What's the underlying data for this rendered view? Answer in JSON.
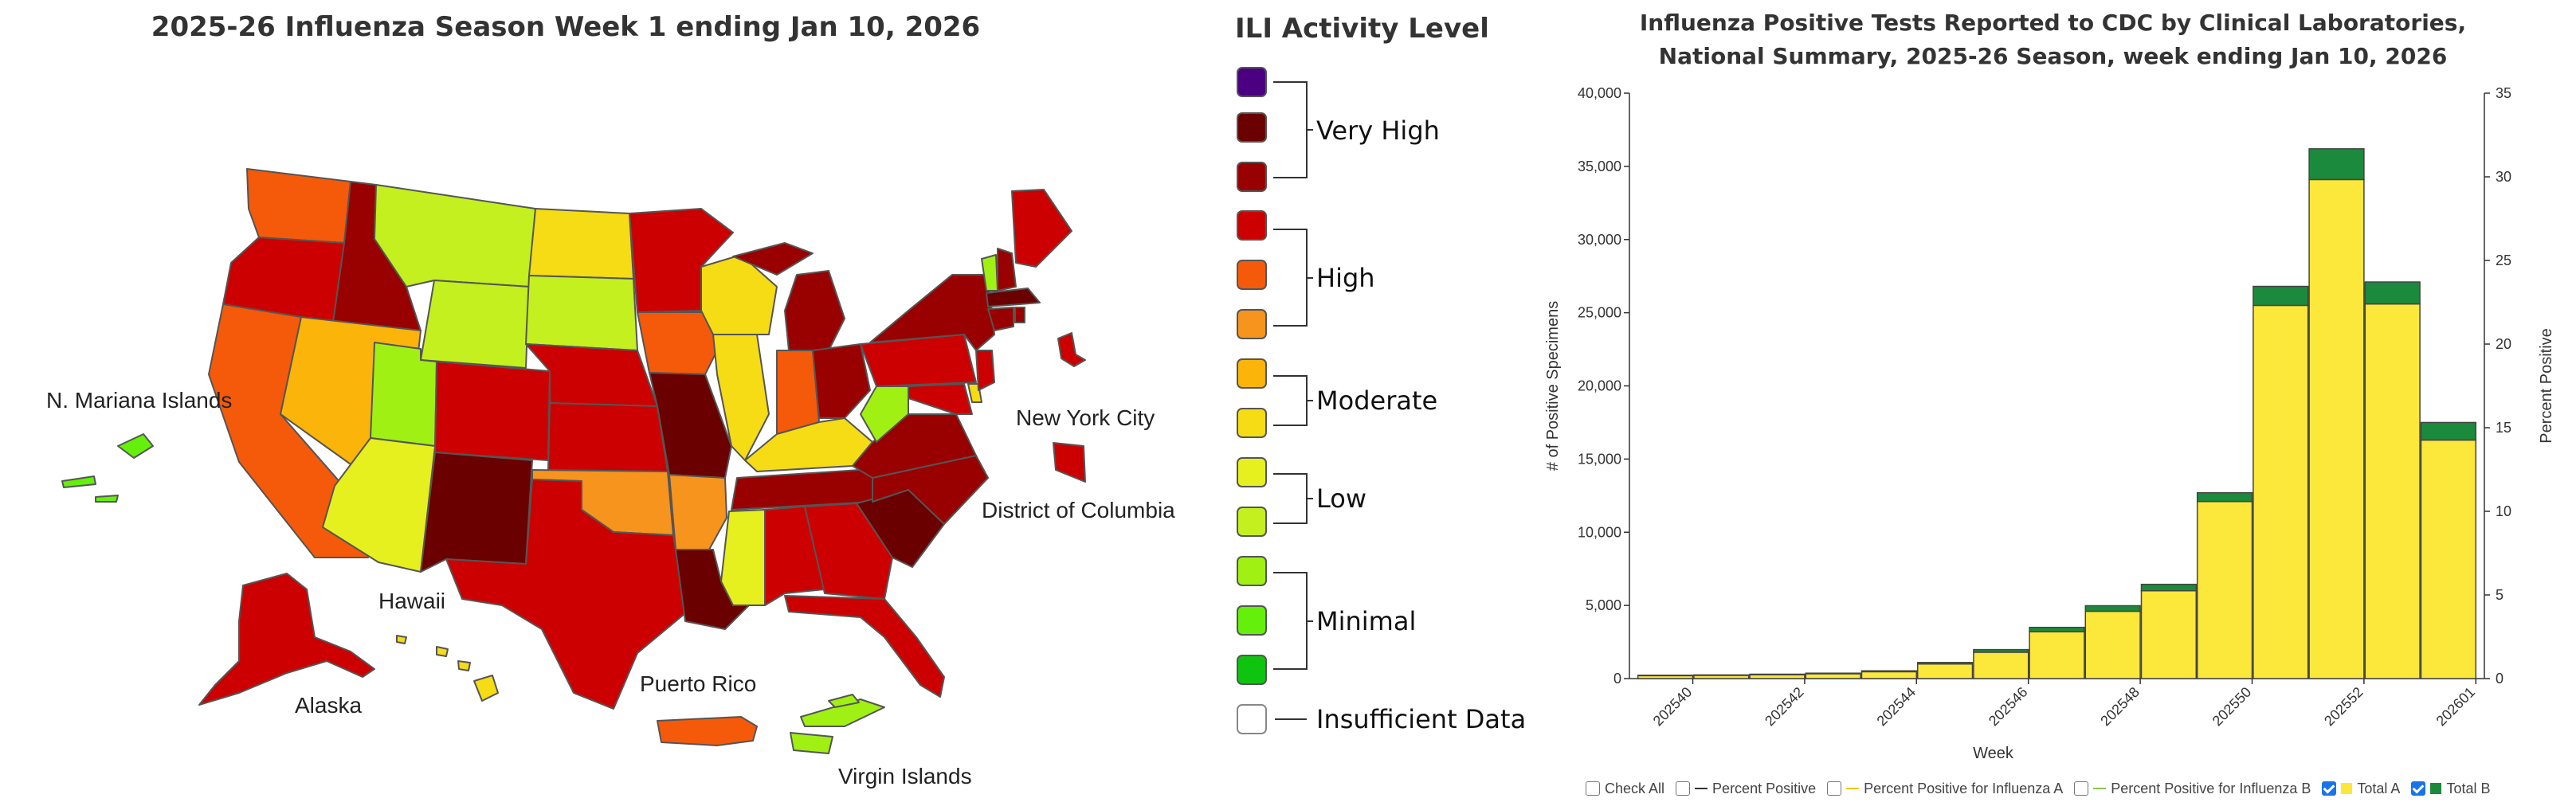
{
  "map": {
    "title": "2025-26 Influenza Season Week 1 ending Jan 10, 2026",
    "territory_labels": {
      "mariana": "N. Mariana Islands",
      "nyc": "New York City",
      "dc": "District of Columbia",
      "hawaii": "Hawaii",
      "alaska": "Alaska",
      "puerto_rico": "Puerto Rico",
      "virgin_islands": "Virgin Islands"
    }
  },
  "legend": {
    "title": "ILI Activity Level",
    "colors": [
      "#4b0082",
      "#6b0000",
      "#990000",
      "#cc0000",
      "#f55a0a",
      "#f7941d",
      "#fbb40a",
      "#f5dc14",
      "#e6f01e",
      "#c3f01e",
      "#a0f014",
      "#64f00a",
      "#0fc30f",
      "#ffffff"
    ],
    "groups": [
      "Very High",
      "High",
      "Moderate",
      "Low",
      "Minimal",
      "Insufficient Data"
    ]
  },
  "chart": {
    "title_line1": "Influenza Positive Tests Reported to CDC by Clinical Laboratories,",
    "title_line2": "National Summary, 2025-26 Season, week ending Jan 10, 2026",
    "controls": {
      "check_all": "Check All",
      "pct_positive": "Percent Positive",
      "pct_a": "Percent Positive for Influenza A",
      "pct_b": "Percent Positive for Influenza B",
      "total_a": "Total A",
      "total_b": "Total B"
    },
    "colors": {
      "total_a": "#fce83a",
      "total_b": "#1b8a3c",
      "line_a": "#f5c518",
      "line_b": "#8bc34a"
    }
  },
  "chart_data": {
    "type": "bar",
    "stacked": true,
    "categories": [
      "202540",
      "202541",
      "202542",
      "202543",
      "202544",
      "202545",
      "202546",
      "202547",
      "202548",
      "202549",
      "202550",
      "202551",
      "202552",
      "202553",
      "202601"
    ],
    "x_tick_labels": [
      "202540",
      "202542",
      "202544",
      "202546",
      "202548",
      "202550",
      "202552",
      "202601"
    ],
    "series": [
      {
        "name": "Total A",
        "values": [
          200,
          220,
          260,
          330,
          470,
          1000,
          1800,
          3200,
          4600,
          6000,
          12100,
          25500,
          34100,
          25600,
          16300
        ]
      },
      {
        "name": "Total B",
        "values": [
          30,
          30,
          40,
          40,
          60,
          100,
          180,
          300,
          380,
          440,
          600,
          1300,
          2100,
          1500,
          1200
        ]
      }
    ],
    "xlabel": "Week",
    "ylabel": "# of Positive Specimens",
    "y2label": "Percent Positive",
    "ylim": [
      0,
      40000
    ],
    "y2lim": [
      0,
      35
    ],
    "yticks": [
      "0",
      "5,000",
      "10,000",
      "15,000",
      "20,000",
      "25,000",
      "30,000",
      "35,000",
      "40,000"
    ],
    "y2ticks": [
      "0",
      "5",
      "10",
      "15",
      "20",
      "25",
      "30",
      "35"
    ]
  }
}
